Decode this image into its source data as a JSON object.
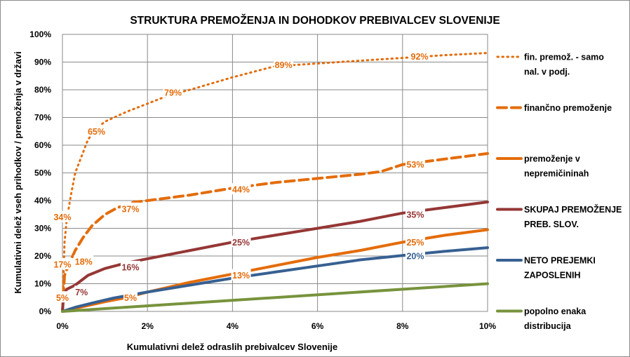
{
  "chart_data": {
    "type": "line",
    "title": "STRUKTURA PREMOŽENJA IN DOHODKOV PREBIVALCEV SLOVENIJE",
    "xlabel": "Kumulativni delež odraslih prebivalcev Slovenije",
    "ylabel": "Kumulativni delež vseh prihodkov / premoženja v državi",
    "xlim": [
      0,
      10
    ],
    "ylim": [
      0,
      100
    ],
    "x_ticks": [
      "0%",
      "2%",
      "4%",
      "6%",
      "8%",
      "10%"
    ],
    "y_ticks": [
      "0%",
      "10%",
      "20%",
      "30%",
      "40%",
      "50%",
      "60%",
      "70%",
      "80%",
      "90%",
      "100%"
    ],
    "grid": true,
    "legend_position": "right",
    "series": [
      {
        "name": "fin. premož. - samo nal. v podj.",
        "color": "#E46C0A",
        "style": "dotted",
        "points": [
          [
            0,
            0
          ],
          [
            0.05,
            25
          ],
          [
            0.1,
            33
          ],
          [
            0.2,
            42
          ],
          [
            0.3,
            50
          ],
          [
            0.5,
            58
          ],
          [
            0.6,
            62
          ],
          [
            0.8,
            66
          ],
          [
            1,
            68.5
          ],
          [
            1.5,
            72
          ],
          [
            2,
            75
          ],
          [
            2.5,
            78
          ],
          [
            3,
            80
          ],
          [
            4,
            84.5
          ],
          [
            5,
            88.5
          ],
          [
            6,
            89.5
          ],
          [
            7,
            90.5
          ],
          [
            8,
            91.5
          ],
          [
            9,
            92.5
          ],
          [
            10,
            93.3
          ]
        ],
        "labels": [
          {
            "x": 0,
            "y": 34,
            "text": "34%"
          },
          {
            "x": 0.8,
            "y": 65,
            "text": "65%"
          },
          {
            "x": 2.6,
            "y": 79,
            "text": "79%"
          },
          {
            "x": 5.2,
            "y": 89,
            "text": "89%"
          },
          {
            "x": 8.4,
            "y": 92,
            "text": "92%"
          }
        ]
      },
      {
        "name": "finančno premoženje",
        "color": "#E46C0A",
        "style": "dashed",
        "points": [
          [
            0,
            0
          ],
          [
            0.05,
            13
          ],
          [
            0.15,
            17
          ],
          [
            0.3,
            22
          ],
          [
            0.5,
            27
          ],
          [
            0.7,
            31
          ],
          [
            1,
            35
          ],
          [
            1.3,
            37.5
          ],
          [
            1.7,
            39.5
          ],
          [
            2,
            40
          ],
          [
            3,
            42
          ],
          [
            4,
            44.5
          ],
          [
            5,
            46.5
          ],
          [
            6,
            48
          ],
          [
            7,
            49.5
          ],
          [
            7.5,
            50.5
          ],
          [
            8,
            53
          ],
          [
            9,
            55
          ],
          [
            10,
            57
          ]
        ],
        "labels": [
          {
            "x": 0,
            "y": 17,
            "text": "17%"
          },
          {
            "x": 0.5,
            "y": 18,
            "text": "18%"
          },
          {
            "x": 1.6,
            "y": 37,
            "text": "37%"
          },
          {
            "x": 4.2,
            "y": 44,
            "text": "44%"
          },
          {
            "x": 8.3,
            "y": 53,
            "text": "53%"
          }
        ]
      },
      {
        "name": "premoženje v nepremičininah",
        "color": "#E46C0A",
        "style": "solid",
        "points": [
          [
            0,
            0
          ],
          [
            0.5,
            1.8
          ],
          [
            1,
            3.5
          ],
          [
            1.5,
            5
          ],
          [
            2,
            7
          ],
          [
            3,
            10.5
          ],
          [
            4,
            13.5
          ],
          [
            5,
            16.5
          ],
          [
            6,
            19.5
          ],
          [
            7,
            22
          ],
          [
            8,
            25
          ],
          [
            9,
            27.5
          ],
          [
            10,
            29.5
          ]
        ],
        "labels": [
          {
            "x": 0,
            "y": 5,
            "text": "5%"
          },
          {
            "x": 1.6,
            "y": 5,
            "text": "5%"
          },
          {
            "x": 4.2,
            "y": 13,
            "text": "13%"
          },
          {
            "x": 8.3,
            "y": 25,
            "text": "25%"
          }
        ]
      },
      {
        "name": "SKUPAJ PREMOŽENJE PREB. SLOV.",
        "color": "#953735",
        "style": "solid",
        "points": [
          [
            0,
            0
          ],
          [
            0.03,
            6
          ],
          [
            0.1,
            8
          ],
          [
            0.3,
            9.5
          ],
          [
            0.6,
            13
          ],
          [
            1,
            15.5
          ],
          [
            1.5,
            17.5
          ],
          [
            2,
            19
          ],
          [
            3,
            22
          ],
          [
            4,
            25
          ],
          [
            5,
            27.5
          ],
          [
            6,
            30
          ],
          [
            7,
            32.5
          ],
          [
            7.5,
            34
          ],
          [
            8,
            35.5
          ],
          [
            9,
            37.5
          ],
          [
            10,
            39.5
          ]
        ],
        "labels": [
          {
            "x": 0.45,
            "y": 7,
            "text": "7%"
          },
          {
            "x": 1.6,
            "y": 16,
            "text": "16%"
          },
          {
            "x": 4.2,
            "y": 25,
            "text": "25%"
          },
          {
            "x": 8.3,
            "y": 35,
            "text": "35%"
          }
        ]
      },
      {
        "name": "NETO PREJEMKI ZAPOSLENIH",
        "color": "#376092",
        "style": "solid",
        "points": [
          [
            0,
            0
          ],
          [
            0.3,
            1.5
          ],
          [
            0.7,
            3
          ],
          [
            1.2,
            4.8
          ],
          [
            2,
            7
          ],
          [
            3,
            9.5
          ],
          [
            4,
            12
          ],
          [
            5,
            14.2
          ],
          [
            6,
            16.4
          ],
          [
            7,
            18.6
          ],
          [
            8,
            20.2
          ],
          [
            9,
            21.7
          ],
          [
            10,
            23
          ]
        ],
        "labels": [
          {
            "x": 8.3,
            "y": 20,
            "text": "20%"
          }
        ]
      },
      {
        "name": "popolno enaka distribucija",
        "color": "#77933C",
        "style": "solid",
        "points": [
          [
            0,
            0
          ],
          [
            10,
            10
          ]
        ],
        "labels": []
      }
    ]
  }
}
